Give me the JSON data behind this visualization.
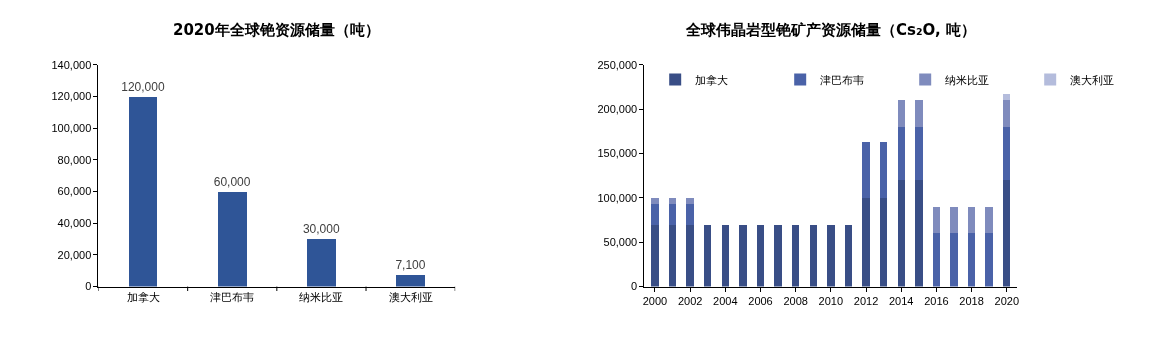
{
  "chart_data": [
    {
      "type": "bar",
      "title": "2020年全球铯资源储量（吨）",
      "categories": [
        "加拿大",
        "津巴布韦",
        "纳米比亚",
        "澳大利亚"
      ],
      "values": [
        120000,
        60000,
        30000,
        7100
      ],
      "value_labels": [
        "120,000",
        "60,000",
        "30,000",
        "7,100"
      ],
      "color": "#2f5597",
      "ylim": [
        0,
        140000
      ],
      "yticks": [
        0,
        {
          "value": 20000,
          "label": "20,000"
        },
        {
          "value": 40000,
          "label": "40,000"
        },
        {
          "value": 60000,
          "label": "60,000"
        },
        {
          "value": 80000,
          "label": "80,000"
        },
        {
          "value": 100000,
          "label": "100,000"
        },
        {
          "value": 120000,
          "label": "120,000"
        },
        {
          "value": 140000,
          "label": "140,000"
        }
      ],
      "legend": false
    },
    {
      "type": "bar",
      "title": "全球伟晶岩型铯矿产资源储量（Cs₂O, 吨）",
      "stacked": true,
      "x": [
        2000,
        2001,
        2002,
        2003,
        2004,
        2005,
        2006,
        2007,
        2008,
        2009,
        2010,
        2011,
        2012,
        2013,
        2014,
        2015,
        2016,
        2017,
        2018,
        2019,
        2020
      ],
      "xlim": [
        1999.4,
        2020.6
      ],
      "xticks": [
        2000,
        2002,
        2004,
        2006,
        2008,
        2010,
        2012,
        2014,
        2016,
        2018,
        2020
      ],
      "ylim": [
        0,
        250000
      ],
      "yticks": [
        0,
        {
          "value": 50000,
          "label": "50,000"
        },
        {
          "value": 100000,
          "label": "100,000"
        },
        {
          "value": 150000,
          "label": "150,000"
        },
        {
          "value": 200000,
          "label": "200,000"
        },
        {
          "value": 250000,
          "label": "250,000"
        }
      ],
      "legend": "top",
      "series": [
        {
          "name": "加拿大",
          "color": "#394e86",
          "values": [
            70000,
            70000,
            70000,
            70000,
            70000,
            70000,
            70000,
            70000,
            70000,
            70000,
            70000,
            70000,
            100000,
            100000,
            120000,
            120000,
            null,
            null,
            null,
            null,
            120000
          ]
        },
        {
          "name": "津巴布韦",
          "color": "#4a62a8",
          "values": [
            23000,
            23000,
            23000,
            null,
            null,
            null,
            null,
            null,
            null,
            null,
            null,
            null,
            63000,
            63000,
            60000,
            60000,
            60000,
            60000,
            60000,
            60000,
            60000
          ]
        },
        {
          "name": "纳米比亚",
          "color": "#7f8bbd",
          "values": [
            7000,
            7000,
            7000,
            null,
            null,
            null,
            null,
            null,
            null,
            null,
            null,
            null,
            null,
            null,
            30000,
            30000,
            30000,
            30000,
            30000,
            30000,
            30000
          ]
        },
        {
          "name": "澳大利亚",
          "color": "#b4bcdc",
          "values": [
            null,
            null,
            null,
            null,
            null,
            null,
            null,
            null,
            null,
            null,
            null,
            null,
            null,
            null,
            null,
            null,
            null,
            null,
            null,
            null,
            7000
          ]
        }
      ]
    }
  ]
}
